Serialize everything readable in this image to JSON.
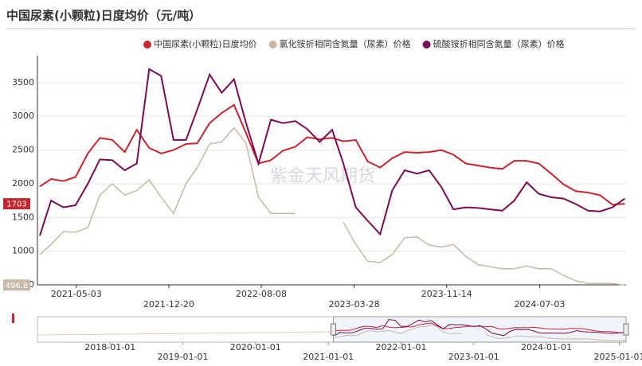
{
  "chart_data": {
    "type": "line",
    "title": "中国尿素(小颗粒)日度均价（元/吨）",
    "watermark": "紫金天风期货",
    "x": [
      "2021-02-01",
      "2021-03-01",
      "2021-04-01",
      "2021-05-01",
      "2021-06-01",
      "2021-07-01",
      "2021-08-01",
      "2021-09-01",
      "2021-10-01",
      "2021-11-01",
      "2021-12-01",
      "2022-01-01",
      "2022-02-01",
      "2022-03-01",
      "2022-04-01",
      "2022-05-01",
      "2022-06-01",
      "2022-07-01",
      "2022-08-01",
      "2022-09-01",
      "2022-10-01",
      "2022-11-01",
      "2022-12-01",
      "2023-01-01",
      "2023-02-01",
      "2023-03-01",
      "2023-04-01",
      "2023-05-01",
      "2023-06-01",
      "2023-07-01",
      "2023-08-01",
      "2023-09-01",
      "2023-10-01",
      "2023-11-01",
      "2023-12-01",
      "2024-01-01",
      "2024-02-01",
      "2024-03-01",
      "2024-04-01",
      "2024-05-01",
      "2024-06-01",
      "2024-07-01",
      "2024-08-01",
      "2024-09-01",
      "2024-10-01",
      "2024-11-01",
      "2024-12-01",
      "2025-01-01",
      "2025-02-01"
    ],
    "series": [
      {
        "name": "中国尿素(小颗粒)日度均价",
        "color": "#c9252c",
        "end_label": 1703,
        "values": [
          1960,
          2070,
          2040,
          2100,
          2450,
          2680,
          2650,
          2470,
          2800,
          2530,
          2450,
          2500,
          2590,
          2600,
          2900,
          3050,
          3170,
          2750,
          2300,
          2350,
          2490,
          2550,
          2690,
          2660,
          2680,
          2630,
          2650,
          2330,
          2240,
          2380,
          2470,
          2460,
          2470,
          2500,
          2430,
          2300,
          2270,
          2240,
          2220,
          2340,
          2340,
          2300,
          2150,
          1990,
          1890,
          1870,
          1830,
          1690,
          1703
        ]
      },
      {
        "name": "氯化铵折相同含氮量（尿素）价格",
        "color": "#c8b9a6",
        "end_label": 496.8,
        "values": [
          950,
          1100,
          1290,
          1280,
          1350,
          1830,
          2000,
          1830,
          1900,
          2060,
          1800,
          1560,
          2000,
          2240,
          2590,
          2620,
          2830,
          2600,
          1800,
          1560,
          1560,
          1560,
          null,
          null,
          null,
          1430,
          1100,
          850,
          830,
          950,
          1200,
          1210,
          1090,
          1060,
          1100,
          920,
          800,
          770,
          740,
          740,
          780,
          740,
          740,
          640,
          560,
          520,
          520,
          520,
          496.8
        ]
      },
      {
        "name": "硫酸铵折相同含氮量（尿素）价格",
        "color": "#7a0b55",
        "values": [
          1230,
          1750,
          1650,
          1680,
          2000,
          2360,
          2350,
          2200,
          2300,
          3700,
          3600,
          2650,
          2650,
          3100,
          3620,
          3350,
          3550,
          2900,
          2300,
          2950,
          2900,
          2930,
          2810,
          2620,
          2800,
          2300,
          1650,
          1450,
          1250,
          1900,
          2200,
          2150,
          2200,
          1950,
          1620,
          1650,
          1640,
          1620,
          1600,
          1750,
          2020,
          1850,
          1800,
          1780,
          1700,
          1600,
          1590,
          1650,
          1780
        ]
      }
    ],
    "xlim": [
      "2021-01-26",
      "2025-02-04"
    ],
    "xticks": [
      "2021-05-03",
      "2021-12-20",
      "2022-08-08",
      "2023-03-28",
      "2023-11-14",
      "2024-07-03"
    ],
    "ylim": [
      500,
      3900
    ],
    "yticks": [
      500,
      1000,
      1500,
      2000,
      2500,
      3000,
      3500
    ],
    "grid": true,
    "legend": "top",
    "navigator": {
      "xlim": [
        "2017-01-01",
        "2025-02-04"
      ],
      "xticks": [
        "2018-01-01",
        "2019-01-01",
        "2020-01-01",
        "2021-01-01",
        "2022-01-01",
        "2023-01-01",
        "2024-01-01",
        "2025-01-01"
      ]
    }
  }
}
